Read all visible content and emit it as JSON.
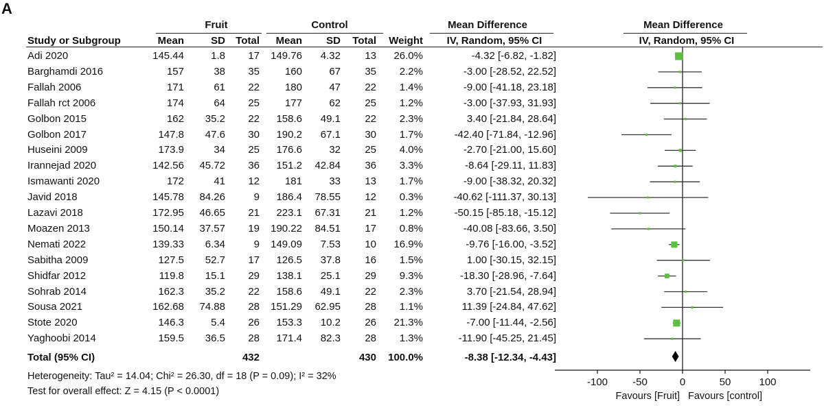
{
  "panel_label": "A",
  "headers": {
    "fruit_group": "Fruit",
    "control_group": "Control",
    "md_left": "Mean Difference",
    "md_left_sub": "IV, Random, 95% CI",
    "md_right": "Mean Difference",
    "md_right_sub": "IV, Random, 95% CI",
    "study": "Study or Subgroup",
    "mean": "Mean",
    "sd": "SD",
    "total": "Total",
    "weight": "Weight"
  },
  "studies": [
    {
      "name": "Adi 2020",
      "f_mean": "145.44",
      "f_sd": "1.8",
      "f_total": "17",
      "c_mean": "149.76",
      "c_sd": "4.32",
      "c_total": "13",
      "weight": "26.0%",
      "ci_text": "-4.32 [-6.82, -1.82]",
      "md": -4.32,
      "lo": -6.82,
      "hi": -1.82,
      "w": 26.0
    },
    {
      "name": "Barghamdi 2016",
      "f_mean": "157",
      "f_sd": "38",
      "f_total": "35",
      "c_mean": "160",
      "c_sd": "67",
      "c_total": "35",
      "weight": "2.2%",
      "ci_text": "-3.00 [-28.52, 22.52]",
      "md": -3.0,
      "lo": -28.52,
      "hi": 22.52,
      "w": 2.2
    },
    {
      "name": "Fallah 2006",
      "f_mean": "171",
      "f_sd": "61",
      "f_total": "22",
      "c_mean": "180",
      "c_sd": "47",
      "c_total": "22",
      "weight": "1.4%",
      "ci_text": "-9.00 [-41.18, 23.18]",
      "md": -9.0,
      "lo": -41.18,
      "hi": 23.18,
      "w": 1.4
    },
    {
      "name": "Fallah rct 2006",
      "f_mean": "174",
      "f_sd": "64",
      "f_total": "25",
      "c_mean": "177",
      "c_sd": "62",
      "c_total": "25",
      "weight": "1.2%",
      "ci_text": "-3.00 [-37.93, 31.93]",
      "md": -3.0,
      "lo": -37.93,
      "hi": 31.93,
      "w": 1.2
    },
    {
      "name": "Golbon 2015",
      "f_mean": "162",
      "f_sd": "35.2",
      "f_total": "22",
      "c_mean": "158.6",
      "c_sd": "49.1",
      "c_total": "22",
      "weight": "2.3%",
      "ci_text": "3.40 [-21.84, 28.64]",
      "md": 3.4,
      "lo": -21.84,
      "hi": 28.64,
      "w": 2.3
    },
    {
      "name": "Golbon 2017",
      "f_mean": "147.8",
      "f_sd": "47.6",
      "f_total": "30",
      "c_mean": "190.2",
      "c_sd": "67.1",
      "c_total": "30",
      "weight": "1.7%",
      "ci_text": "-42.40 [-71.84, -12.96]",
      "md": -42.4,
      "lo": -71.84,
      "hi": -12.96,
      "w": 1.7
    },
    {
      "name": "Huseini 2009",
      "f_mean": "173.9",
      "f_sd": "34",
      "f_total": "25",
      "c_mean": "176.6",
      "c_sd": "32",
      "c_total": "25",
      "weight": "4.0%",
      "ci_text": "-2.70 [-21.00, 15.60]",
      "md": -2.7,
      "lo": -21.0,
      "hi": 15.6,
      "w": 4.0
    },
    {
      "name": "Irannejad 2020",
      "f_mean": "142.56",
      "f_sd": "45.72",
      "f_total": "36",
      "c_mean": "151.2",
      "c_sd": "42.84",
      "c_total": "36",
      "weight": "3.3%",
      "ci_text": "-8.64 [-29.11, 11.83]",
      "md": -8.64,
      "lo": -29.11,
      "hi": 11.83,
      "w": 3.3
    },
    {
      "name": "Ismawanti 2020",
      "f_mean": "172",
      "f_sd": "41",
      "f_total": "12",
      "c_mean": "181",
      "c_sd": "33",
      "c_total": "13",
      "weight": "1.7%",
      "ci_text": "-9.00 [-38.32, 20.32]",
      "md": -9.0,
      "lo": -38.32,
      "hi": 20.32,
      "w": 1.7
    },
    {
      "name": "Javid 2018",
      "f_mean": "145.78",
      "f_sd": "84.26",
      "f_total": "9",
      "c_mean": "186.4",
      "c_sd": "78.55",
      "c_total": "12",
      "weight": "0.3%",
      "ci_text": "-40.62 [-111.37, 30.13]",
      "md": -40.62,
      "lo": -111.37,
      "hi": 30.13,
      "w": 0.3
    },
    {
      "name": "Lazavi 2018",
      "f_mean": "172.95",
      "f_sd": "46.65",
      "f_total": "21",
      "c_mean": "223.1",
      "c_sd": "67.31",
      "c_total": "21",
      "weight": "1.2%",
      "ci_text": "-50.15 [-85.18, -15.12]",
      "md": -50.15,
      "lo": -85.18,
      "hi": -15.12,
      "w": 1.2
    },
    {
      "name": "Moazen 2013",
      "f_mean": "150.14",
      "f_sd": "37.57",
      "f_total": "19",
      "c_mean": "190.22",
      "c_sd": "84.51",
      "c_total": "17",
      "weight": "0.8%",
      "ci_text": "-40.08 [-83.66, 3.50]",
      "md": -40.08,
      "lo": -83.66,
      "hi": 3.5,
      "w": 0.8
    },
    {
      "name": "Nemati 2022",
      "f_mean": "139.33",
      "f_sd": "6.34",
      "f_total": "9",
      "c_mean": "149.09",
      "c_sd": "7.53",
      "c_total": "10",
      "weight": "16.9%",
      "ci_text": "-9.76 [-16.00, -3.52]",
      "md": -9.76,
      "lo": -16.0,
      "hi": -3.52,
      "w": 16.9
    },
    {
      "name": "Sabitha 2009",
      "f_mean": "127.5",
      "f_sd": "52.7",
      "f_total": "17",
      "c_mean": "126.5",
      "c_sd": "37.8",
      "c_total": "16",
      "weight": "1.5%",
      "ci_text": "1.00 [-30.15, 32.15]",
      "md": 1.0,
      "lo": -30.15,
      "hi": 32.15,
      "w": 1.5
    },
    {
      "name": "Shidfar 2012",
      "f_mean": "119.8",
      "f_sd": "15.1",
      "f_total": "29",
      "c_mean": "138.1",
      "c_sd": "25.1",
      "c_total": "29",
      "weight": "9.3%",
      "ci_text": "-18.30 [-28.96, -7.64]",
      "md": -18.3,
      "lo": -28.96,
      "hi": -7.64,
      "w": 9.3
    },
    {
      "name": "Sohrab 2014",
      "f_mean": "162.3",
      "f_sd": "35.2",
      "f_total": "22",
      "c_mean": "158.6",
      "c_sd": "49.1",
      "c_total": "22",
      "weight": "2.3%",
      "ci_text": "3.70 [-21.54, 28.94]",
      "md": 3.7,
      "lo": -21.54,
      "hi": 28.94,
      "w": 2.3
    },
    {
      "name": "Sousa 2021",
      "f_mean": "162.68",
      "f_sd": "74.88",
      "f_total": "28",
      "c_mean": "151.29",
      "c_sd": "62.95",
      "c_total": "28",
      "weight": "1.1%",
      "ci_text": "11.39 [-24.84, 47.62]",
      "md": 11.39,
      "lo": -24.84,
      "hi": 47.62,
      "w": 1.1
    },
    {
      "name": "Stote 2020",
      "f_mean": "146.3",
      "f_sd": "5.4",
      "f_total": "26",
      "c_mean": "153.3",
      "c_sd": "10.2",
      "c_total": "26",
      "weight": "21.3%",
      "ci_text": "-7.00 [-11.44, -2.56]",
      "md": -7.0,
      "lo": -11.44,
      "hi": -2.56,
      "w": 21.3
    },
    {
      "name": "Yaghoobi 2014",
      "f_mean": "159.5",
      "f_sd": "36.5",
      "f_total": "28",
      "c_mean": "171.4",
      "c_sd": "82.3",
      "c_total": "28",
      "weight": "1.3%",
      "ci_text": "-11.90 [-45.25, 21.45]",
      "md": -11.9,
      "lo": -45.25,
      "hi": 21.45,
      "w": 1.3
    }
  ],
  "total": {
    "label": "Total (95% CI)",
    "f_total": "432",
    "c_total": "430",
    "weight": "100.0%",
    "ci_text": "-8.38 [-12.34, -4.43]",
    "md": -8.38,
    "lo": -12.34,
    "hi": -4.43
  },
  "footnotes": {
    "heterogeneity": "Heterogeneity: Tau² = 14.04; Chi² = 26.30, df = 18 (P = 0.09); I² = 32%",
    "overall": "Test for overall effect: Z = 4.15 (P < 0.0001)"
  },
  "colors": {
    "marker": "#5cbf3f",
    "ink": "#111111"
  },
  "chart_data": {
    "type": "forest",
    "x_min": -120,
    "x_max": 120,
    "ticks": [
      -100,
      -50,
      0,
      50,
      100
    ],
    "tick_labels": [
      "-100",
      "-50",
      "0",
      "50",
      "100"
    ],
    "favours_left": "Favours [Fruit]",
    "favours_right": "Favours [control]"
  }
}
